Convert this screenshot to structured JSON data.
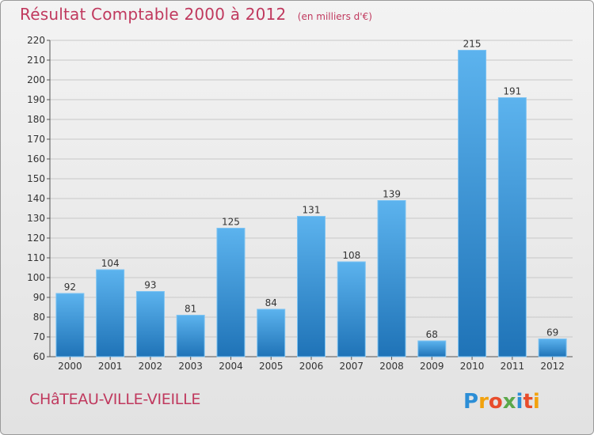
{
  "title": "Résultat Comptable 2000 à 2012",
  "title_unit": "(en milliers d'€)",
  "footer_name": "CHâTEAU-VILLE-VIEILLE",
  "logo_text": "Proxiti",
  "colors": {
    "title": "#c0395e",
    "bar_top": "#5cb3ee",
    "bar_bottom": "#1f73b7",
    "grid": "#c8c8c8"
  },
  "chart_data": {
    "type": "bar",
    "title": "Résultat Comptable 2000 à 2012",
    "categories": [
      "2000",
      "2001",
      "2002",
      "2003",
      "2004",
      "2005",
      "2006",
      "2007",
      "2008",
      "2009",
      "2010",
      "2011",
      "2012"
    ],
    "values": [
      92,
      104,
      93,
      81,
      125,
      84,
      131,
      108,
      139,
      68,
      215,
      191,
      69
    ],
    "data_labels": [
      "92",
      "104",
      "93",
      "81",
      "125",
      "84",
      "131",
      "108",
      "139",
      "68",
      "215",
      "191",
      "69"
    ],
    "xlabel": "",
    "ylabel": "",
    "ylim": [
      60,
      220
    ],
    "yticks": [
      60,
      70,
      80,
      90,
      100,
      110,
      120,
      130,
      140,
      150,
      160,
      170,
      180,
      190,
      200,
      210,
      220
    ],
    "grid": true
  }
}
